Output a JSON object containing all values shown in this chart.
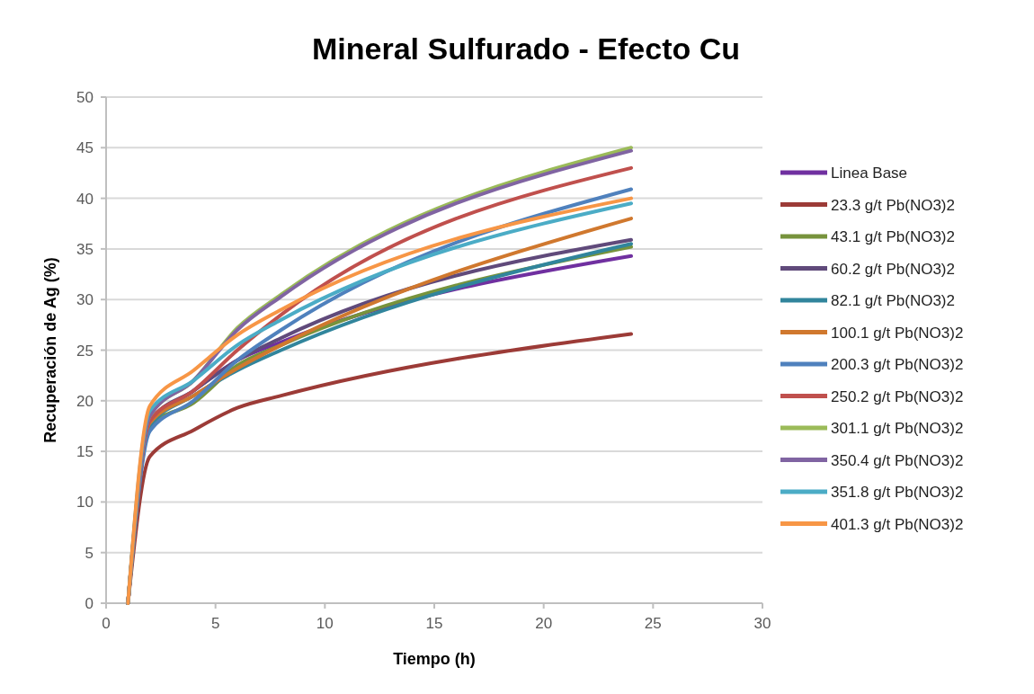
{
  "chart_data": {
    "type": "line",
    "title": "Mineral Sulfurado - Efecto Cu",
    "xlabel": "Tiempo (h)",
    "ylabel": "Recuperación de Ag (%)",
    "x": [
      1,
      2,
      4,
      6,
      8,
      24
    ],
    "xlim": [
      0,
      30
    ],
    "xticks": [
      0,
      5,
      10,
      15,
      20,
      25,
      30
    ],
    "ylim": [
      0,
      50
    ],
    "yticks": [
      0,
      5,
      10,
      15,
      20,
      25,
      30,
      35,
      40,
      45,
      50
    ],
    "grid": "y",
    "legend": "right",
    "marker": "none",
    "line_style": "solid",
    "series": [
      {
        "name": "Linea Base",
        "color": "#7030a0",
        "values": [
          0,
          17.5,
          21,
          24,
          25.8,
          34.3
        ]
      },
      {
        "name": "23.3 g/t Pb(NO3)2",
        "color": "#9c3b37",
        "values": [
          0,
          14.5,
          17.1,
          19.3,
          20.5,
          26.6
        ]
      },
      {
        "name": "43.1 g/t Pb(NO3)2",
        "color": "#77933c",
        "values": [
          0,
          17.5,
          19.8,
          23.5,
          25.5,
          35.2
        ]
      },
      {
        "name": "60.2 g/t Pb(NO3)2",
        "color": "#604a7b",
        "values": [
          0,
          18,
          21,
          24,
          26.2,
          35.9
        ]
      },
      {
        "name": "82.1 g/t Pb(NO3)2",
        "color": "#31859c",
        "values": [
          0,
          17.5,
          20.5,
          23,
          25,
          35.5
        ]
      },
      {
        "name": "100.1 g/t Pb(NO3)2",
        "color": "#d0782e",
        "values": [
          0,
          17.8,
          20.5,
          23.2,
          25.5,
          38.0
        ]
      },
      {
        "name": "200.3 g/t Pb(NO3)2",
        "color": "#4f81bd",
        "values": [
          0,
          17,
          20,
          24,
          27,
          40.9
        ]
      },
      {
        "name": "250.2 g/t Pb(NO3)2",
        "color": "#c0504d",
        "values": [
          0,
          18,
          21,
          25,
          28.5,
          43.0
        ]
      },
      {
        "name": "301.1 g/t Pb(NO3)2",
        "color": "#9bbb59",
        "values": [
          0,
          18.5,
          22,
          27.2,
          30.5,
          45.0
        ]
      },
      {
        "name": "350.4 g/t Pb(NO3)2",
        "color": "#8064a2",
        "values": [
          0,
          18.5,
          22,
          27,
          30.3,
          44.7
        ]
      },
      {
        "name": "351.8 g/t Pb(NO3)2",
        "color": "#4bacc6",
        "values": [
          0,
          19,
          22,
          25.5,
          28,
          39.5
        ]
      },
      {
        "name": "401.3 g/t Pb(NO3)2",
        "color": "#f79646",
        "values": [
          0,
          19.5,
          23,
          26.5,
          29,
          40.0
        ]
      }
    ]
  }
}
